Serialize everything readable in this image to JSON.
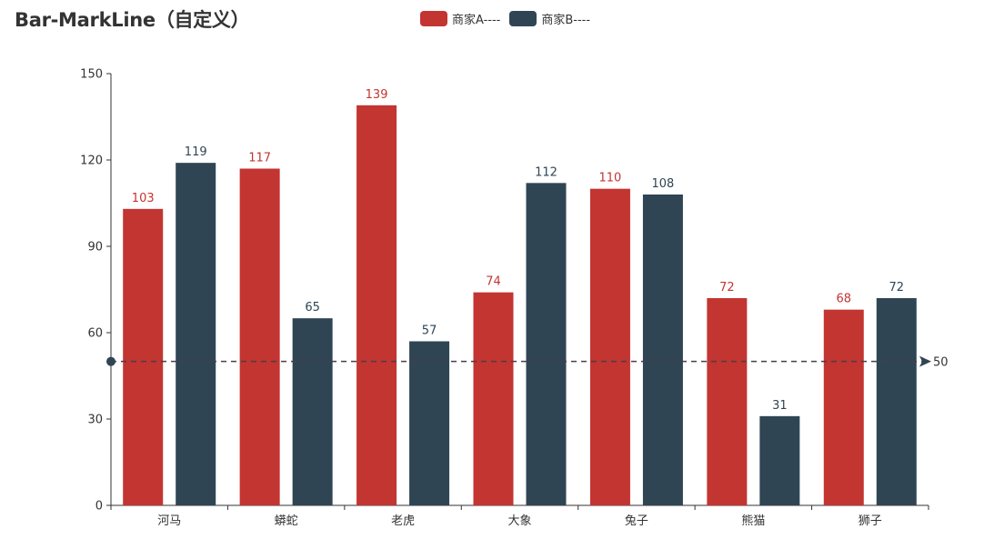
{
  "chart_data": {
    "type": "bar",
    "title": "Bar-MarkLine（自定义）",
    "categories": [
      "河马",
      "蟒蛇",
      "老虎",
      "大象",
      "兔子",
      "熊猫",
      "狮子"
    ],
    "series": [
      {
        "name": "商家A----",
        "color": "#c23531",
        "values": [
          103,
          117,
          139,
          74,
          110,
          72,
          68
        ]
      },
      {
        "name": "商家B----",
        "color": "#2f4554",
        "values": [
          119,
          65,
          57,
          112,
          108,
          31,
          72
        ]
      }
    ],
    "xlabel": "",
    "ylabel": "",
    "ylim": [
      0,
      150
    ],
    "yticks": [
      0,
      30,
      60,
      90,
      120,
      150
    ],
    "grid": false,
    "legend_position": "top",
    "markline": {
      "value": 50,
      "label": "50",
      "style": "dashed",
      "color": "#4a3d4a"
    }
  },
  "header": {
    "title": "Bar-MarkLine（自定义）"
  },
  "legend": {
    "items": [
      {
        "label": "商家A----",
        "color": "#c23531"
      },
      {
        "label": "商家B----",
        "color": "#2f4554"
      }
    ]
  }
}
